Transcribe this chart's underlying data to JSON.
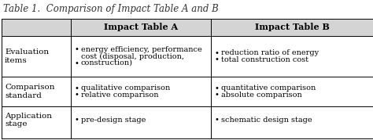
{
  "title": "Table 1.  Comparison of Impact Table A and B",
  "col_headers": [
    "",
    "Impact Table A",
    "Impact Table B"
  ],
  "rows": [
    {
      "label": "Evaluation\nitems",
      "col_a_lines": [
        "energy efficiency, performance",
        "cost (disposal, production,",
        "construction)"
      ],
      "col_a_bullet_rows": [
        0,
        2
      ],
      "col_b_lines": [
        "reduction ratio of energy",
        "total construction cost"
      ],
      "col_b_bullet_rows": [
        0,
        1
      ]
    },
    {
      "label": "Comparison\nstandard",
      "col_a_lines": [
        "qualitative comparison",
        "relative comparison"
      ],
      "col_a_bullet_rows": [
        0,
        1
      ],
      "col_b_lines": [
        "quantitative comparison",
        "absolute comparison"
      ],
      "col_b_bullet_rows": [
        0,
        1
      ]
    },
    {
      "label": "Application\nstage",
      "col_a_lines": [
        "pre-design stage"
      ],
      "col_a_bullet_rows": [
        0
      ],
      "col_b_lines": [
        "schematic design stage"
      ],
      "col_b_bullet_rows": [
        0
      ]
    }
  ],
  "header_bg": "#d4d4d4",
  "row_bg": "#ffffff",
  "border_color": "#000000",
  "title_fontsize": 8.5,
  "header_fontsize": 8.0,
  "cell_fontsize": 7.0,
  "label_fontsize": 7.5
}
